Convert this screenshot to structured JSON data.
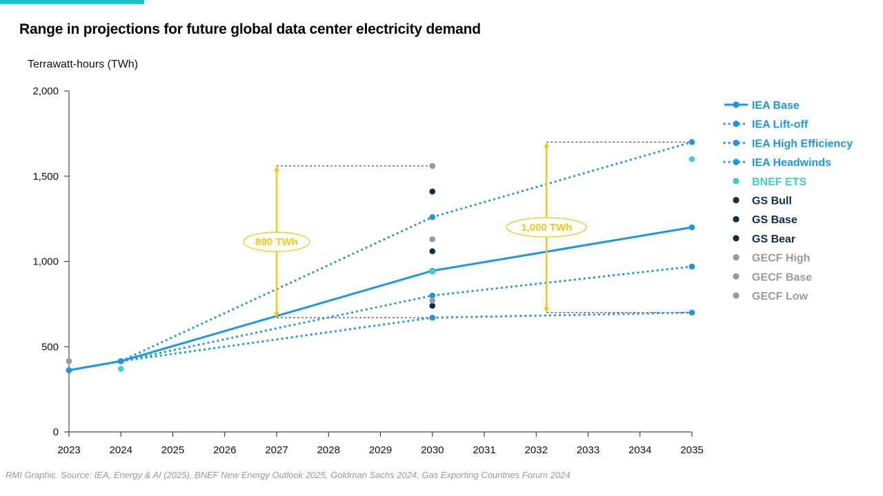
{
  "header": {
    "title": "Range in projections for future global data center electricity demand"
  },
  "source": "RMI Graphic. Source: IEA, Energy & AI (2025), BNEF New Energy Outlook 2025, Goldman Sachs 2024, Gas Exporting Countries Forum 2024",
  "colors": {
    "accent_bar": "#19c7c7",
    "iea": "#1a96ea",
    "bnef": "#3fcfc4",
    "gs": "#0b2f4e",
    "gecf": "#9a9a9a",
    "annotation": "#f5c518"
  },
  "chart_data": {
    "type": "line",
    "title": "Range in projections for future global data center electricity demand",
    "ylabel": "Terrawatt-hours (TWh)",
    "xlabel": "",
    "xlim": [
      2023,
      2035
    ],
    "ylim": [
      0,
      2000
    ],
    "x_ticks": [
      "2023",
      "2024",
      "2025",
      "2026",
      "2027",
      "2028",
      "2029",
      "2030",
      "2031",
      "2032",
      "2033",
      "2034",
      "2035"
    ],
    "y_ticks": [
      "0",
      "500",
      "1,000",
      "1,500",
      "2,000"
    ],
    "grid": false,
    "legend_position": "right",
    "series": [
      {
        "name": "IEA Base",
        "style": "solid-line",
        "color": "#1a96ea",
        "x": [
          2023,
          2024,
          2030,
          2035
        ],
        "y": [
          362,
          415,
          945,
          1200
        ]
      },
      {
        "name": "IEA Lift-off",
        "style": "dotted-line",
        "color": "#1a96ea",
        "x": [
          2023,
          2024,
          2030,
          2035
        ],
        "y": [
          362,
          415,
          1260,
          1700
        ]
      },
      {
        "name": "IEA High Efficiency",
        "style": "dotted-line",
        "color": "#1a96ea",
        "x": [
          2023,
          2024,
          2030,
          2035
        ],
        "y": [
          362,
          415,
          800,
          970
        ]
      },
      {
        "name": "IEA Headwinds",
        "style": "dotted-line",
        "color": "#1a96ea",
        "x": [
          2023,
          2024,
          2030,
          2035
        ],
        "y": [
          362,
          415,
          670,
          700
        ]
      },
      {
        "name": "BNEF ETS",
        "style": "marker",
        "color": "#3fcfc4",
        "x": [
          2024,
          2030,
          2035
        ],
        "y": [
          370,
          940,
          1600
        ]
      },
      {
        "name": "GS Bull",
        "style": "marker",
        "color": "#0b2f4e",
        "x": [
          2030
        ],
        "y": [
          1410
        ]
      },
      {
        "name": "GS Base",
        "style": "marker",
        "color": "#0b2f4e",
        "x": [
          2030
        ],
        "y": [
          1060
        ]
      },
      {
        "name": "GS Bear",
        "style": "marker",
        "color": "#0b2f4e",
        "x": [
          2030
        ],
        "y": [
          740
        ]
      },
      {
        "name": "GECF High",
        "style": "marker",
        "color": "#9a9a9a",
        "x": [
          2023,
          2030
        ],
        "y": [
          415,
          1560
        ]
      },
      {
        "name": "GECF Base",
        "style": "marker",
        "color": "#9a9a9a",
        "x": [
          2030
        ],
        "y": [
          1130
        ]
      },
      {
        "name": "GECF Low",
        "style": "marker",
        "color": "#9a9a9a",
        "x": [
          2030
        ],
        "y": [
          770
        ]
      }
    ],
    "annotations": [
      {
        "label": "890 TWh",
        "x": 2027,
        "y_low": 670,
        "y_high": 1560,
        "guide_from": 2027,
        "guide_to": 2030
      },
      {
        "label": "1,000 TWh",
        "x": 2032.2,
        "y_low": 700,
        "y_high": 1700,
        "guide_from": 2032.2,
        "guide_to": 2035
      }
    ]
  }
}
